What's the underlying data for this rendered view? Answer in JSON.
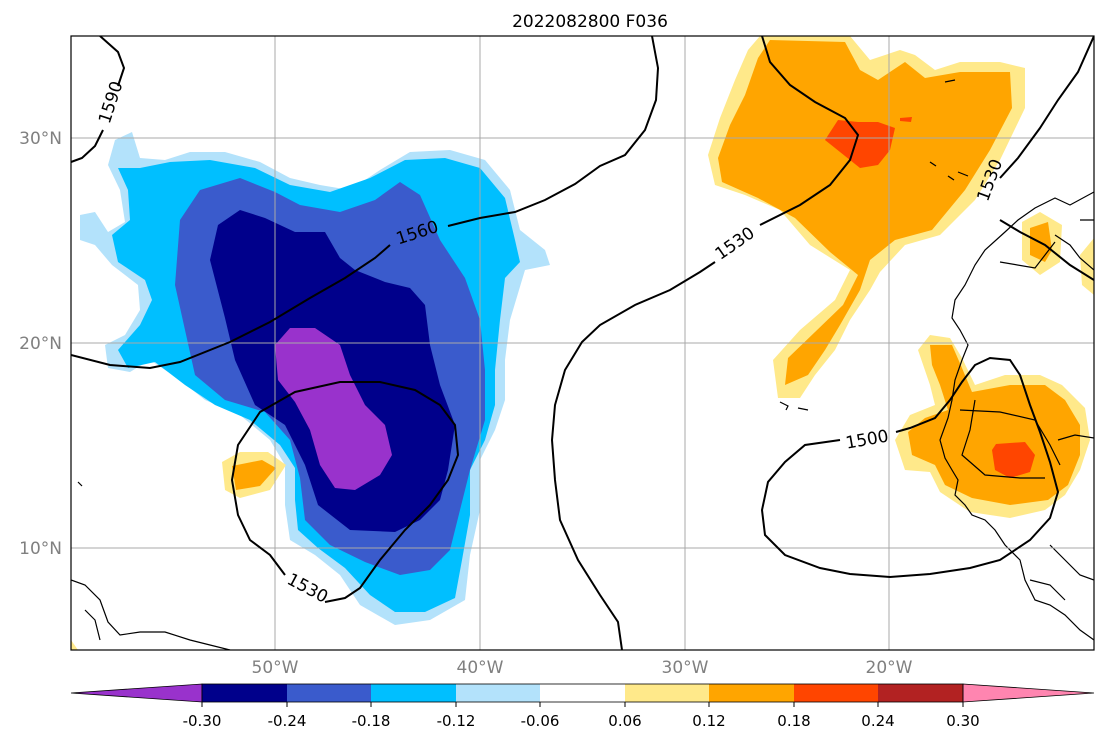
{
  "title": "2022082800 F036",
  "latitude_labels": [
    "30°N",
    "20°N",
    "10°N"
  ],
  "longitude_labels": [
    "50°W",
    "40°W",
    "30°W",
    "20°W"
  ],
  "map_extent": {
    "lon_min": -60,
    "lon_max": -10,
    "lat_min": 5,
    "lat_max": 35
  },
  "grid": true,
  "contours": {
    "color": "#000000",
    "labels": [
      "1590",
      "1560",
      "1530",
      "1530",
      "1530",
      "1500"
    ]
  },
  "shading": {
    "negative_colors": [
      "#9932cc",
      "#00008b",
      "#3a5bcc",
      "#00bfff",
      "#b3e2fb"
    ],
    "positive_colors": [
      "#ffe98a",
      "#ffa500",
      "#ff4500",
      "#b22222",
      "#ff85b0"
    ]
  },
  "colorbar": {
    "levels": [
      "-0.30",
      "-0.24",
      "-0.18",
      "-0.12",
      "-0.06",
      "0.06",
      "0.12",
      "0.18",
      "0.24",
      "0.30"
    ],
    "colors": [
      "#9932cc",
      "#00008b",
      "#3a5bcc",
      "#00bfff",
      "#b3e2fb",
      "#ffffff",
      "#ffe98a",
      "#ffa500",
      "#ff4500",
      "#b22222",
      "#ff85b0"
    ]
  }
}
